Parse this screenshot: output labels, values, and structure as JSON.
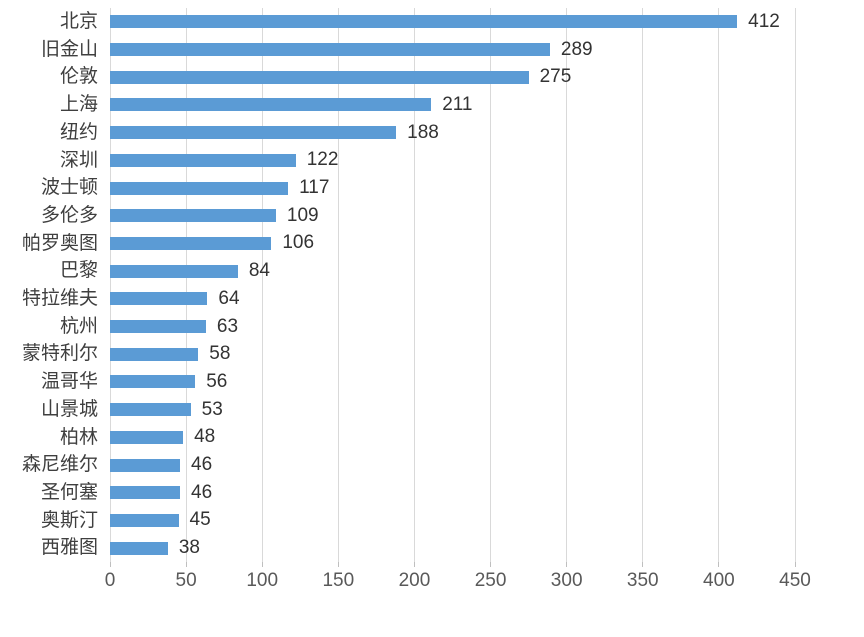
{
  "chart_data": {
    "type": "bar",
    "orientation": "horizontal",
    "title": "",
    "xlabel": "",
    "ylabel": "",
    "categories": [
      "北京",
      "旧金山",
      "伦敦",
      "上海",
      "纽约",
      "深圳",
      "波士顿",
      "多伦多",
      "帕罗奥图",
      "巴黎",
      "特拉维夫",
      "杭州",
      "蒙特利尔",
      "温哥华",
      "山景城",
      "柏林",
      "森尼维尔",
      "圣何塞",
      "奥斯汀",
      "西雅图"
    ],
    "values": [
      412,
      289,
      275,
      211,
      188,
      122,
      117,
      109,
      106,
      84,
      64,
      63,
      58,
      56,
      53,
      48,
      46,
      46,
      45,
      38
    ],
    "data_labels_shown": true,
    "xlim": [
      0,
      450
    ],
    "x_ticks": [
      0,
      50,
      100,
      150,
      200,
      250,
      300,
      350,
      400,
      450
    ],
    "grid": true,
    "legend": "none",
    "colors": {
      "bar": "#5B9BD5",
      "gridline": "#D9D9D9",
      "tick_mark": "#BFBFBF",
      "axis_tick_label": "#595959",
      "value_label": "#333333",
      "category_label": "#3f3f3f",
      "background": "#FFFFFF"
    }
  }
}
